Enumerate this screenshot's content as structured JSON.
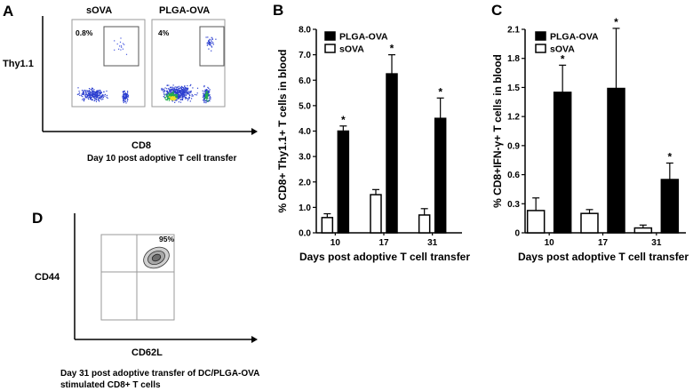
{
  "panels": {
    "a": {
      "letter": "A",
      "plot_titles": [
        "sOVA",
        "PLGA-OVA"
      ],
      "gate_percents": [
        "0.8%",
        "4%"
      ],
      "ylabel": "Thy1.1",
      "xlabel": "CD8",
      "caption": "Day 10 post adoptive T cell transfer"
    },
    "d": {
      "letter": "D",
      "gate_percent": "95%",
      "ylabel": "CD44",
      "xlabel": "CD62L",
      "caption_line1": "Day 31 post adoptive transfer of DC/PLGA-OVA",
      "caption_line2": "stimulated CD8+ T cells"
    }
  },
  "chart_data": [
    {
      "id": "B",
      "letter": "B",
      "type": "bar",
      "categories": [
        "10",
        "17",
        "31"
      ],
      "series": [
        {
          "name": "PLGA-OVA",
          "color": "#000000",
          "values": [
            4.0,
            6.25,
            4.5
          ],
          "errors": [
            0.2,
            0.75,
            0.8
          ],
          "significance": [
            "*",
            "*",
            "*"
          ]
        },
        {
          "name": "sOVA",
          "color": "#ffffff",
          "values": [
            0.6,
            1.5,
            0.7
          ],
          "errors": [
            0.15,
            0.2,
            0.25
          ],
          "significance": [
            "",
            "",
            ""
          ]
        }
      ],
      "xlabel": "Days post adoptive T cell transfer",
      "ylabel": "% CD8+ Thy1.1+ T cells in blood",
      "ylim": [
        0,
        8
      ],
      "yticks": [
        "0.0",
        "1.0",
        "2.0",
        "3.0",
        "4.0",
        "5.0",
        "6.0",
        "7.0",
        "8.0"
      ],
      "legend_position": "top-left"
    },
    {
      "id": "C",
      "letter": "C",
      "type": "bar",
      "categories": [
        "10",
        "17",
        "31"
      ],
      "series": [
        {
          "name": "PLGA-OVA",
          "color": "#000000",
          "values": [
            1.45,
            1.49,
            0.55
          ],
          "errors": [
            0.28,
            0.62,
            0.17
          ],
          "significance": [
            "*",
            "*",
            "*"
          ]
        },
        {
          "name": "sOVA",
          "color": "#ffffff",
          "values": [
            0.23,
            0.2,
            0.05
          ],
          "errors": [
            0.13,
            0.04,
            0.03
          ],
          "significance": [
            "",
            "",
            ""
          ]
        }
      ],
      "xlabel": "Days post adoptive T cell transfer",
      "ylabel": "% CD8+IFN-γ+  T cells in blood",
      "ylim": [
        0,
        2.1
      ],
      "yticks": [
        "0",
        "0.3",
        "0.6",
        "0.9",
        "1.2",
        "1.5",
        "1.8",
        "2.1"
      ],
      "legend_position": "top-left"
    }
  ]
}
